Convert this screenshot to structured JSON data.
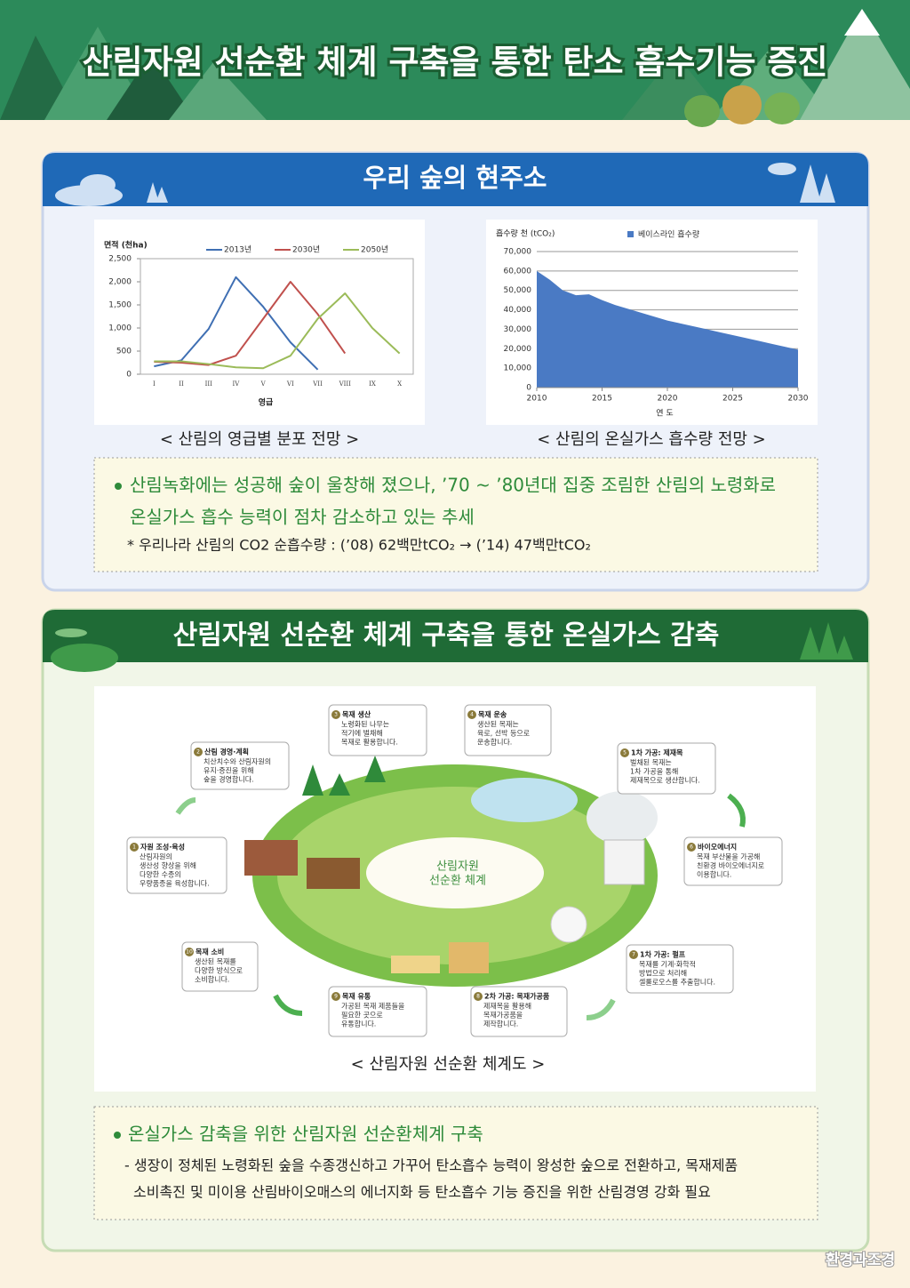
{
  "header": {
    "title": "산림자원 선순환 체계 구축을 통한 탄소 흡수기능 증진"
  },
  "section1": {
    "title": "우리 숲의 현주소",
    "captions": [
      "< 산림의 영급별 분포 전망 >",
      "< 산림의 온실가스 흡수량 전망 >"
    ],
    "bullet": [
      "산림녹화에는 성공해 숲이 울창해 졌으나, ’70 ~ ’80년대 집중 조림한 산림의 노령화로",
      "온실가스 흡수 능력이 점차 감소하고 있는 추세"
    ],
    "note": "* 우리나라 산림의 CO2 순흡수량 : (’08) 62백만tCO₂ → (’14) 47백만tCO₂"
  },
  "chart_data": [
    {
      "type": "line",
      "y_label": "면적 (천ha)",
      "x_label": "영급",
      "categories": [
        "I",
        "II",
        "III",
        "IV",
        "V",
        "VI",
        "VII",
        "VIII",
        "IX",
        "X"
      ],
      "series": [
        {
          "name": "2013년",
          "color": "#3f6fb3",
          "values": [
            170,
            300,
            980,
            2100,
            1460,
            690,
            100,
            null,
            null,
            null
          ]
        },
        {
          "name": "2030년",
          "color": "#c0504d",
          "values": [
            270,
            250,
            200,
            400,
            1200,
            2000,
            1300,
            450,
            null,
            null
          ]
        },
        {
          "name": "2050년",
          "color": "#9bbb59",
          "values": [
            280,
            280,
            220,
            150,
            130,
            400,
            1200,
            1750,
            1000,
            450
          ]
        }
      ],
      "ylim": [
        0,
        2500
      ],
      "yticks": [
        0,
        500,
        {
          "value": 1000,
          "label": "1,000"
        },
        {
          "value": 1500,
          "label": "1,500"
        },
        {
          "value": 2000,
          "label": "2,000"
        },
        {
          "value": 2500,
          "label": "2,500"
        }
      ]
    },
    {
      "type": "area",
      "y_label": "흡수량 천 (tCO₂)",
      "x_label": "연 도",
      "x": [
        2010,
        2011,
        2012,
        2013,
        2014,
        2015,
        2016,
        2017,
        2018,
        2019,
        2020,
        2021,
        2022,
        2023,
        2024,
        2025,
        2026,
        2027,
        2028,
        2029,
        2030
      ],
      "series": [
        {
          "name": "베이스라인 흡수량",
          "color": "#4a7ac4",
          "values": [
            60000,
            55500,
            50000,
            47500,
            48000,
            45000,
            42500,
            40500,
            38500,
            36500,
            34500,
            33000,
            31500,
            30000,
            28500,
            27000,
            25500,
            24000,
            22500,
            21000,
            19500
          ]
        }
      ],
      "xlim": [
        2010,
        2030
      ],
      "xticks": [
        2010,
        2015,
        2020,
        2025,
        2030
      ],
      "ylim": [
        0,
        70000
      ],
      "yticks": [
        0,
        {
          "value": 10000,
          "label": "10,000"
        },
        {
          "value": 20000,
          "label": "20,000"
        },
        {
          "value": 30000,
          "label": "30,000"
        },
        {
          "value": 40000,
          "label": "40,000"
        },
        {
          "value": 50000,
          "label": "50,000"
        },
        {
          "value": 60000,
          "label": "60,000"
        },
        {
          "value": 70000,
          "label": "70,000"
        }
      ],
      "grid": true
    }
  ],
  "section2": {
    "title": "산림자원 선순환 체계 구축을 통한 온실가스 감축",
    "caption": "< 산림자원 선순환 체계도 >",
    "bullet": "온실가스 감축을 위한 산림자원 선순환체계 구축",
    "detail": [
      "- 생장이 정체된 노령화된 숲을 수종갱신하고 가꾸어 탄소흡수 능력이 왕성한 숲으로 전환하고, 목재제품",
      "소비촉진 및 미이용 산림바이오매스의 에너지화 등 탄소흡수 기능 증진을 위한 산림경영 강화 필요"
    ]
  },
  "diagram": {
    "center": [
      "산림자원",
      "선순환 체계"
    ],
    "nodes": [
      {
        "num": "1",
        "title": "자원 조성·육성",
        "lines": [
          "산림자원의",
          "생산성 향상을 위해",
          "다양한 수종의",
          "우량품종을 육성합니다."
        ]
      },
      {
        "num": "2",
        "title": "산림 경영·계획",
        "lines": [
          "치산치수와 산림자원의",
          "유지·증진을 위해",
          "숲을 경영합니다."
        ]
      },
      {
        "num": "3",
        "title": "목재 생산",
        "lines": [
          "노령화된 나무는",
          "적기에 벌채해",
          "목재로 활용합니다."
        ]
      },
      {
        "num": "4",
        "title": "목재 운송",
        "lines": [
          "생산된 목재는",
          "육로, 선박 등으로",
          "운송합니다."
        ]
      },
      {
        "num": "5",
        "title": "1차 가공: 제재목",
        "lines": [
          "벌채된 목재는",
          "1차 가공을 통해",
          "제재목으로 생산합니다."
        ]
      },
      {
        "num": "6",
        "title": "바이오에너지",
        "lines": [
          "목재 부산물을 가공해",
          "친환경 바이오에너지로",
          "이용합니다."
        ]
      },
      {
        "num": "7",
        "title": "1차 가공: 펄프",
        "lines": [
          "목재를 기계·화학적",
          "방법으로 처리해",
          "셀룰로오스를 추출합니다."
        ]
      },
      {
        "num": "8",
        "title": "2차 가공: 목재가공품",
        "lines": [
          "제재목을 활용해",
          "목재가공품을",
          "제작합니다."
        ]
      },
      {
        "num": "9",
        "title": "목재 유통",
        "lines": [
          "가공된 목재 제품들을",
          "필요한 곳으로",
          "유통합니다."
        ]
      },
      {
        "num": "10",
        "title": "목재 소비",
        "lines": [
          "생산된 목재를",
          "다양한 방식으로",
          "소비합니다."
        ]
      }
    ]
  },
  "footer": {
    "logo": "환경과조경"
  }
}
